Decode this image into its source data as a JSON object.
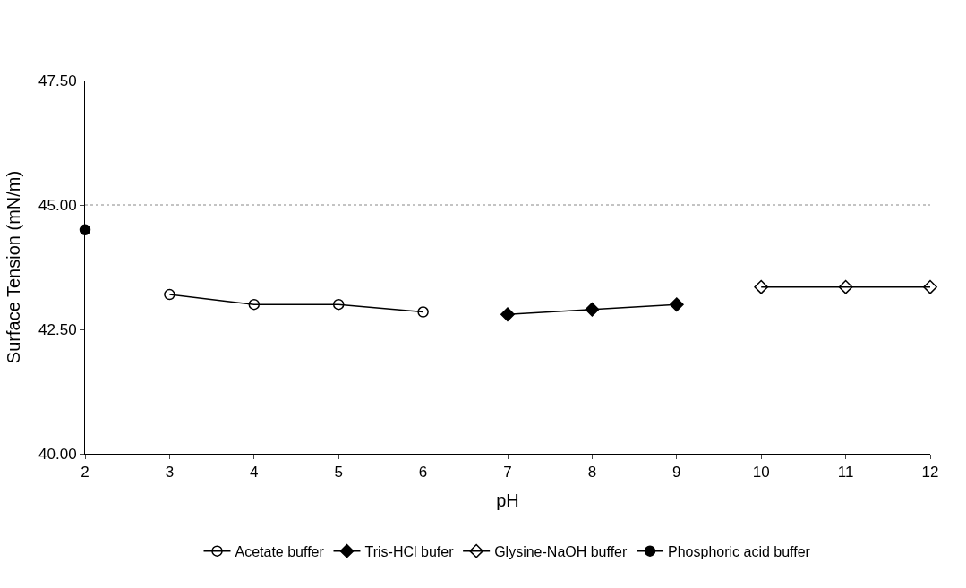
{
  "chart_data": {
    "type": "line",
    "xlabel": "pH",
    "ylabel": "Surface Tension (mN/m)",
    "xlim": [
      2,
      12
    ],
    "xticks": [
      2,
      3,
      4,
      5,
      6,
      7,
      8,
      9,
      10,
      11,
      12
    ],
    "ylim": [
      40,
      47.5
    ],
    "yticks": [
      {
        "value": 40,
        "label": "40.00"
      },
      {
        "value": 42.5,
        "label": "42.50"
      },
      {
        "value": 45,
        "label": "45.00"
      },
      {
        "value": 47.5,
        "label": "47.50"
      }
    ],
    "grid": false,
    "legend": "bottom",
    "line_style": "solid",
    "ref_lines": [
      {
        "axis": "y",
        "value": 45,
        "color": "#888888",
        "line_style": "dotted"
      }
    ],
    "series": [
      {
        "name": "Acetate buffer",
        "color": "#000000",
        "marker": "circle",
        "x": [
          3,
          4,
          5,
          6
        ],
        "values": [
          43.2,
          43.0,
          43.0,
          42.85
        ]
      },
      {
        "name": "Tris-HCl bufer",
        "color": "#000000",
        "marker": "diamond",
        "x": [
          7,
          8,
          9
        ],
        "values": [
          42.8,
          42.9,
          43.0
        ]
      },
      {
        "name": "Glysine-NaOH buffer",
        "color": "#000000",
        "marker": "diamond",
        "x": [
          10,
          11,
          12
        ],
        "values": [
          43.35,
          43.35,
          43.35
        ]
      },
      {
        "name": "Phosphoric acid buffer",
        "color": "#000000",
        "marker": "circle",
        "x": [
          2
        ],
        "values": [
          44.5
        ]
      }
    ]
  }
}
